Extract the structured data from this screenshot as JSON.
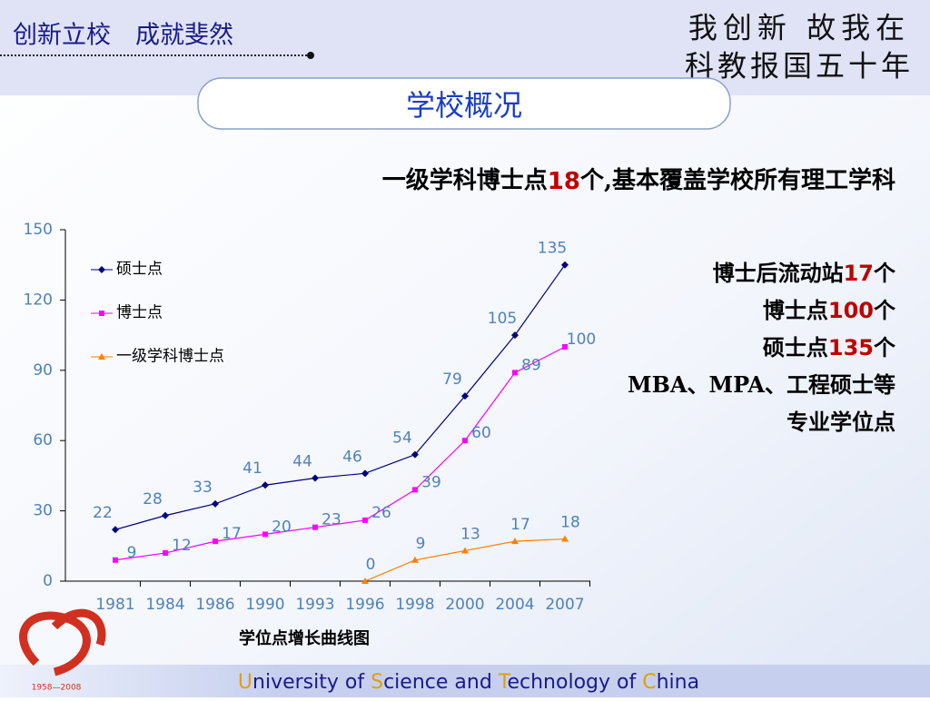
{
  "header": {
    "slogan": "创新立校　成就斐然",
    "motto_line1": "我创新 故我在",
    "motto_line2": "科教报国五十年",
    "title": "学校概况"
  },
  "summary": {
    "parts": [
      "一级学科博士点",
      "18",
      "个,基本覆盖学校所有理工学科"
    ]
  },
  "facts": [
    [
      "博士后流动站",
      "17",
      "个"
    ],
    [
      "博士点",
      "100",
      "个"
    ],
    [
      "硕士点",
      "135",
      "个"
    ],
    [
      "MBA、MPA、工程硕士等"
    ],
    [
      "专业学位点"
    ]
  ],
  "footer": {
    "parts": [
      "U",
      "niversity of ",
      "S",
      "cience and ",
      "T",
      "echnology of ",
      "C",
      "hina"
    ],
    "logo_years": "1958—2008"
  },
  "chart_data": {
    "type": "line",
    "title": "学位点增长曲线图",
    "categories": [
      "1981",
      "1984",
      "1986",
      "1990",
      "1993",
      "1996",
      "1998",
      "2000",
      "2004",
      "2007"
    ],
    "series": [
      {
        "name": "硕士点",
        "color": "#000080",
        "marker": "diamond",
        "values": [
          22,
          28,
          33,
          41,
          44,
          46,
          54,
          79,
          105,
          135
        ]
      },
      {
        "name": "博士点",
        "color": "#ff00ff",
        "marker": "square",
        "values": [
          9,
          12,
          17,
          20,
          23,
          26,
          39,
          60,
          89,
          100
        ]
      },
      {
        "name": "一级学科博士点",
        "color": "#ff8000",
        "marker": "triangle",
        "values": [
          null,
          null,
          null,
          null,
          null,
          0,
          9,
          13,
          17,
          18
        ]
      }
    ],
    "ylim": [
      0,
      150
    ],
    "yticks": [
      0,
      30,
      60,
      90,
      120,
      150
    ],
    "legend": "upper left",
    "label_color": "#4f81bd"
  }
}
